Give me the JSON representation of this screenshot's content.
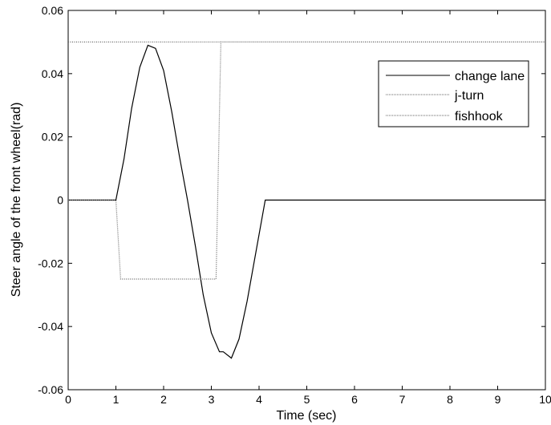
{
  "chart_data": {
    "type": "line",
    "title": "",
    "xlabel": "Time (sec)",
    "ylabel": "Steer angle of the front wheel(rad)",
    "xlim": [
      0,
      10
    ],
    "ylim": [
      -0.06,
      0.06
    ],
    "xticks": [
      0,
      1,
      2,
      3,
      4,
      5,
      6,
      7,
      8,
      9,
      10
    ],
    "xtick_labels": [
      "0",
      "1",
      "2",
      "3",
      "4",
      "5",
      "6",
      "7",
      "8",
      "9",
      "10"
    ],
    "yticks": [
      -0.06,
      -0.04,
      -0.02,
      0,
      0.02,
      0.04,
      0.06
    ],
    "ytick_labels": [
      "-0.06",
      "-0.04",
      "-0.02",
      "0",
      "0.02",
      "0.04",
      "0.06"
    ],
    "grid": false,
    "legend_position": "top-right",
    "series": [
      {
        "name": "change lane",
        "style": "solid",
        "color": "#000000",
        "x": [
          0,
          1.0,
          1.17,
          1.33,
          1.5,
          1.67,
          1.83,
          2.0,
          2.17,
          2.33,
          2.5,
          2.67,
          2.83,
          3.0,
          3.17,
          3.25,
          3.42,
          3.58,
          3.75,
          4.13,
          10
        ],
        "y": [
          0,
          0,
          0.013,
          0.029,
          0.042,
          0.049,
          0.048,
          0.041,
          0.028,
          0.014,
          0.0,
          -0.015,
          -0.03,
          -0.042,
          -0.048,
          -0.048,
          -0.05,
          -0.044,
          -0.032,
          0,
          0
        ]
      },
      {
        "name": "j-turn",
        "style": "dotted",
        "color": "#666666",
        "x": [
          0,
          10
        ],
        "y": [
          0.05,
          0.05
        ]
      },
      {
        "name": "fishhook",
        "style": "dotted",
        "color": "#666666",
        "x": [
          0,
          1.0,
          1.1,
          3.1,
          3.2,
          10
        ],
        "y": [
          0,
          0,
          -0.025,
          -0.025,
          0.05,
          0.05
        ]
      }
    ]
  }
}
